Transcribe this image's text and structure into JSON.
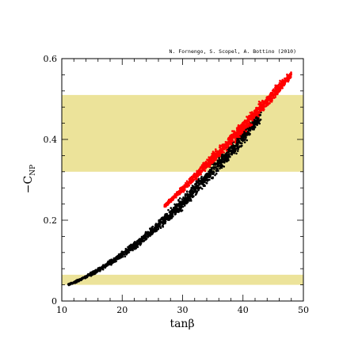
{
  "chart_data": {
    "type": "scatter",
    "title": "",
    "credit": "N. Fornengo, S. Scopel, A. Bottino  (2010)",
    "xlabel": "tanβ",
    "ylabel": "−C_NP",
    "ylabel_main": "−C",
    "ylabel_sub": "NP",
    "xlim": [
      10,
      50
    ],
    "ylim": [
      0,
      0.6
    ],
    "x_ticks": [
      10,
      20,
      30,
      40,
      50
    ],
    "x_tick_labels": [
      "10",
      "20",
      "30",
      "40",
      "50"
    ],
    "y_ticks": [
      0,
      0.2,
      0.4,
      0.6
    ],
    "y_tick_labels": [
      "0",
      "0.2",
      "0.4",
      "0.6"
    ],
    "grid": false,
    "bands": [
      {
        "y_range": [
          0.32,
          0.51
        ],
        "color": "#ece39a"
      },
      {
        "y_range": [
          0.04,
          0.065
        ],
        "color": "#ece39a"
      }
    ],
    "series": [
      {
        "color": "#000000",
        "x": [
          11,
          13,
          15,
          17,
          19,
          21,
          23,
          25,
          27,
          29,
          31,
          33,
          35,
          37,
          39,
          41,
          43
        ],
        "y": [
          0.04,
          0.052,
          0.068,
          0.085,
          0.104,
          0.125,
          0.148,
          0.173,
          0.2,
          0.228,
          0.258,
          0.29,
          0.323,
          0.356,
          0.39,
          0.425,
          0.46
        ],
        "spread": [
          0.003,
          0.005,
          0.006,
          0.008,
          0.01,
          0.012,
          0.014,
          0.016,
          0.018,
          0.02,
          0.022,
          0.024,
          0.025,
          0.026,
          0.027,
          0.028,
          0.028
        ]
      },
      {
        "color": "#ff0000",
        "x": [
          27,
          29,
          31,
          33,
          35,
          37,
          39,
          41,
          43,
          45,
          47,
          48
        ],
        "y": [
          0.235,
          0.262,
          0.292,
          0.323,
          0.353,
          0.384,
          0.415,
          0.447,
          0.48,
          0.512,
          0.545,
          0.56
        ],
        "spread": [
          0.006,
          0.01,
          0.013,
          0.016,
          0.018,
          0.02,
          0.021,
          0.022,
          0.022,
          0.02,
          0.016,
          0.01
        ]
      }
    ]
  }
}
